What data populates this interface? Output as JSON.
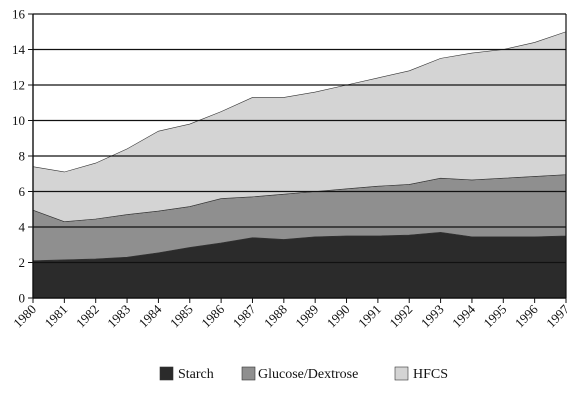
{
  "chart_data": {
    "type": "area",
    "stacked": true,
    "x": [
      "1980",
      "1981",
      "1982",
      "1983",
      "1984",
      "1985",
      "1986",
      "1987",
      "1988",
      "1989",
      "1990",
      "1991",
      "1992",
      "1993",
      "1994",
      "1995",
      "1996",
      "1997"
    ],
    "ylim": [
      0,
      16
    ],
    "yticks": [
      0,
      2,
      4,
      6,
      8,
      10,
      12,
      14,
      16
    ],
    "grid": "horizontal",
    "legend_position": "bottom",
    "series": [
      {
        "name": "Starch",
        "color": "#2b2b2b",
        "values": [
          2.1,
          2.15,
          2.2,
          2.3,
          2.55,
          2.85,
          3.1,
          3.4,
          3.3,
          3.45,
          3.5,
          3.5,
          3.55,
          3.7,
          3.45,
          3.45,
          3.45,
          3.5
        ]
      },
      {
        "name": "Glucose/Dextrose",
        "color": "#8f8f8f",
        "values": [
          2.85,
          2.15,
          2.25,
          2.4,
          2.35,
          2.3,
          2.5,
          2.3,
          2.55,
          2.55,
          2.65,
          2.8,
          2.85,
          3.05,
          3.2,
          3.3,
          3.4,
          3.45
        ]
      },
      {
        "name": "HFCS",
        "color": "#d4d4d4",
        "values": [
          2.45,
          2.8,
          3.15,
          3.7,
          4.5,
          4.65,
          4.9,
          5.6,
          5.45,
          5.6,
          5.85,
          6.1,
          6.4,
          6.75,
          7.15,
          7.25,
          7.55,
          8.05
        ]
      }
    ]
  }
}
